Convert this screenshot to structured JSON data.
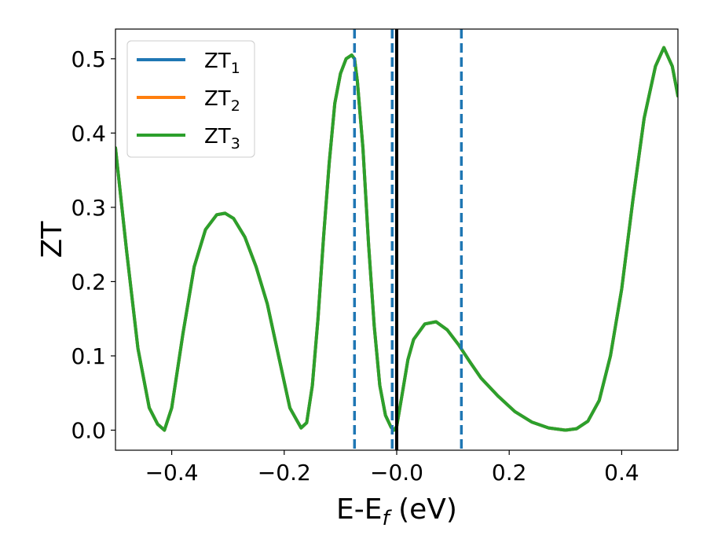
{
  "chart_data": {
    "type": "line",
    "xlabel": "E-E",
    "xlabel_sub": "f",
    "xlabel_unit": " (eV)",
    "ylabel": "ZT",
    "xlim": [
      -0.5,
      0.5
    ],
    "ylim": [
      -0.027,
      0.54
    ],
    "x_ticks": [
      -0.4,
      -0.2,
      0.0,
      0.2,
      0.4
    ],
    "x_tick_labels": [
      "−0.4",
      "−0.2",
      "−0.0",
      "0.2",
      "0.4"
    ],
    "y_ticks": [
      0.0,
      0.1,
      0.2,
      0.3,
      0.4,
      0.5
    ],
    "y_tick_labels": [
      "0.0",
      "0.1",
      "0.2",
      "0.3",
      "0.4",
      "0.5"
    ],
    "grid": false,
    "legend_position": "top-left",
    "series": [
      {
        "name": "ZT",
        "sub": "1",
        "color": "#1f77b4"
      },
      {
        "name": "ZT",
        "sub": "2",
        "color": "#ff7f0e"
      },
      {
        "name": "ZT",
        "sub": "3",
        "color": "#2ca02c"
      }
    ],
    "curve": {
      "x": [
        -0.5,
        -0.48,
        -0.46,
        -0.44,
        -0.425,
        -0.413,
        -0.4,
        -0.38,
        -0.36,
        -0.34,
        -0.32,
        -0.305,
        -0.29,
        -0.27,
        -0.25,
        -0.23,
        -0.21,
        -0.19,
        -0.17,
        -0.16,
        -0.15,
        -0.14,
        -0.13,
        -0.12,
        -0.11,
        -0.1,
        -0.09,
        -0.08,
        -0.075,
        -0.07,
        -0.06,
        -0.05,
        -0.04,
        -0.03,
        -0.02,
        -0.01,
        -0.005,
        0.0,
        0.01,
        0.02,
        0.03,
        0.05,
        0.07,
        0.09,
        0.11,
        0.13,
        0.15,
        0.18,
        0.21,
        0.24,
        0.27,
        0.3,
        0.32,
        0.34,
        0.36,
        0.38,
        0.4,
        0.42,
        0.44,
        0.46,
        0.475,
        0.49,
        0.5
      ],
      "y": [
        0.38,
        0.24,
        0.11,
        0.03,
        0.008,
        0.0,
        0.03,
        0.13,
        0.22,
        0.27,
        0.29,
        0.292,
        0.285,
        0.26,
        0.22,
        0.17,
        0.1,
        0.03,
        0.003,
        0.01,
        0.06,
        0.15,
        0.26,
        0.36,
        0.44,
        0.48,
        0.5,
        0.505,
        0.5,
        0.47,
        0.38,
        0.25,
        0.14,
        0.06,
        0.02,
        0.004,
        0.0,
        0.005,
        0.05,
        0.095,
        0.122,
        0.143,
        0.146,
        0.135,
        0.115,
        0.092,
        0.07,
        0.046,
        0.025,
        0.011,
        0.003,
        0.0,
        0.002,
        0.012,
        0.04,
        0.1,
        0.19,
        0.31,
        0.42,
        0.49,
        0.515,
        0.49,
        0.45
      ]
    },
    "vertical_lines": [
      {
        "x": -0.075,
        "style": "dashed",
        "color": "#1f77b4"
      },
      {
        "x": -0.008,
        "style": "dashed",
        "color": "#1f77b4"
      },
      {
        "x": 0.115,
        "style": "dashed",
        "color": "#1f77b4"
      },
      {
        "x": 0.0,
        "style": "solid",
        "color": "#000000"
      }
    ]
  }
}
